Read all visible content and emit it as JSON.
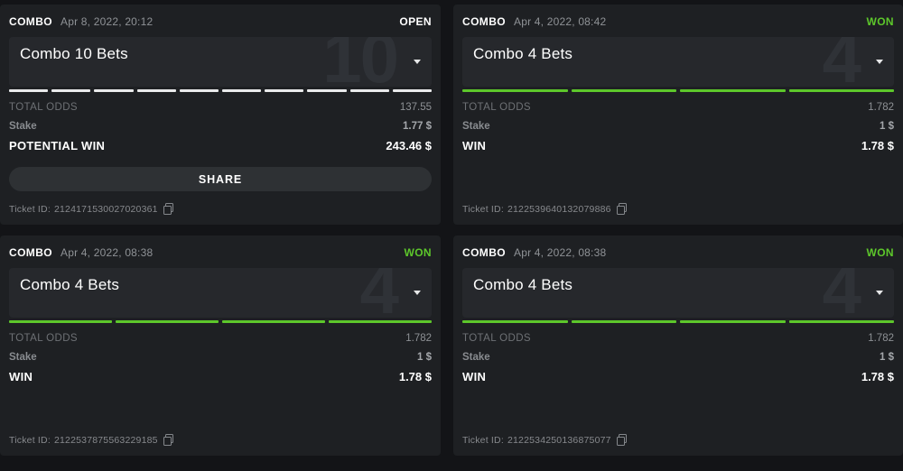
{
  "colors": {
    "page_background": "#131417",
    "card_background": "#1e2023",
    "panel_background": "#26282c",
    "won_green": "#5dc72b",
    "open_white": "#ffffff",
    "segment_white": "#e9eaeb"
  },
  "cards": [
    {
      "type_label": "COMBO",
      "date": "Apr 8, 2022, 20:12",
      "status": "OPEN",
      "status_color": "#ffffff",
      "title": "Combo 10 Bets",
      "watermark": "10",
      "segment_count": 10,
      "segment_color": "#e9eaeb",
      "rows": [
        {
          "label": "TOTAL ODDS",
          "value": "137.55",
          "style": "muted"
        },
        {
          "label": "Stake",
          "value": "1.77 $",
          "style": "stake"
        },
        {
          "label": "POTENTIAL WIN",
          "value": "243.46 $",
          "style": "strong"
        }
      ],
      "share_label": "SHARE",
      "ticket_id_label": "Ticket ID:",
      "ticket_id": "2124171530027020361"
    },
    {
      "type_label": "COMBO",
      "date": "Apr 4, 2022, 08:42",
      "status": "WON",
      "status_color": "#5dc72b",
      "title": "Combo 4 Bets",
      "watermark": "4",
      "segment_count": 4,
      "segment_color": "#5dc72b",
      "rows": [
        {
          "label": "TOTAL ODDS",
          "value": "1.782",
          "style": "muted"
        },
        {
          "label": "Stake",
          "value": "1 $",
          "style": "stake"
        },
        {
          "label": "WIN",
          "value": "1.78 $",
          "style": "strong"
        }
      ],
      "share_label": null,
      "ticket_id_label": "Ticket ID:",
      "ticket_id": "2122539640132079886"
    },
    {
      "type_label": "COMBO",
      "date": "Apr 4, 2022, 08:38",
      "status": "WON",
      "status_color": "#5dc72b",
      "title": "Combo 4 Bets",
      "watermark": "4",
      "segment_count": 4,
      "segment_color": "#5dc72b",
      "rows": [
        {
          "label": "TOTAL ODDS",
          "value": "1.782",
          "style": "muted"
        },
        {
          "label": "Stake",
          "value": "1 $",
          "style": "stake"
        },
        {
          "label": "WIN",
          "value": "1.78 $",
          "style": "strong"
        }
      ],
      "share_label": null,
      "ticket_id_label": "Ticket ID:",
      "ticket_id": "2122537875563229185"
    },
    {
      "type_label": "COMBO",
      "date": "Apr 4, 2022, 08:38",
      "status": "WON",
      "status_color": "#5dc72b",
      "title": "Combo 4 Bets",
      "watermark": "4",
      "segment_count": 4,
      "segment_color": "#5dc72b",
      "rows": [
        {
          "label": "TOTAL ODDS",
          "value": "1.782",
          "style": "muted"
        },
        {
          "label": "Stake",
          "value": "1 $",
          "style": "stake"
        },
        {
          "label": "WIN",
          "value": "1.78 $",
          "style": "strong"
        }
      ],
      "share_label": null,
      "ticket_id_label": "Ticket ID:",
      "ticket_id": "2122534250136875077"
    }
  ]
}
